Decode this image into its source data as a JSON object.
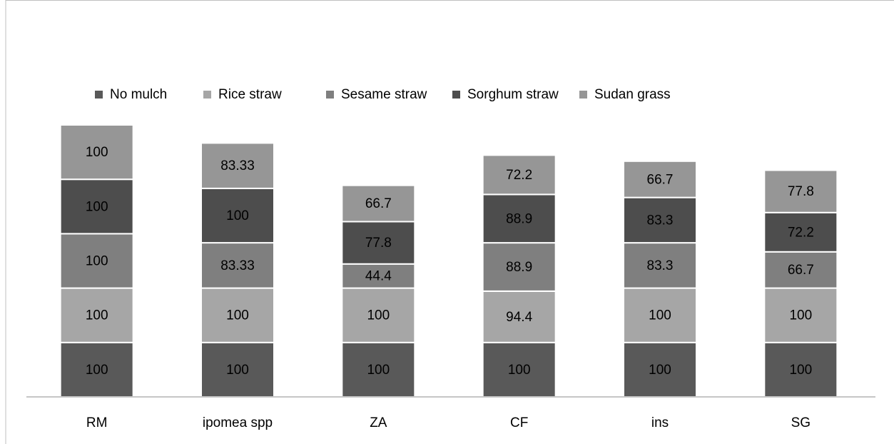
{
  "chart_data": {
    "type": "stacked-bar",
    "categories": [
      "RM",
      "ipomea spp",
      "ZA",
      "CF",
      "ins",
      "SG"
    ],
    "series": [
      {
        "name": "No mulch",
        "color": "#595959",
        "values": [
          100,
          100,
          100,
          100,
          100,
          100
        ]
      },
      {
        "name": "Rice straw",
        "color": "#a6a6a6",
        "values": [
          100,
          100,
          100,
          94.4,
          100,
          100
        ]
      },
      {
        "name": "Sesame straw",
        "color": "#7f7f7f",
        "values": [
          100,
          83.33,
          44.4,
          88.9,
          83.3,
          66.7
        ]
      },
      {
        "name": "Sorghum straw",
        "color": "#4d4d4d",
        "values": [
          100,
          100,
          77.8,
          88.9,
          83.3,
          72.2
        ]
      },
      {
        "name": "Sudan grass",
        "color": "#969696",
        "values": [
          100,
          83.33,
          66.7,
          72.2,
          66.7,
          77.8
        ]
      }
    ],
    "legend": "top"
  }
}
